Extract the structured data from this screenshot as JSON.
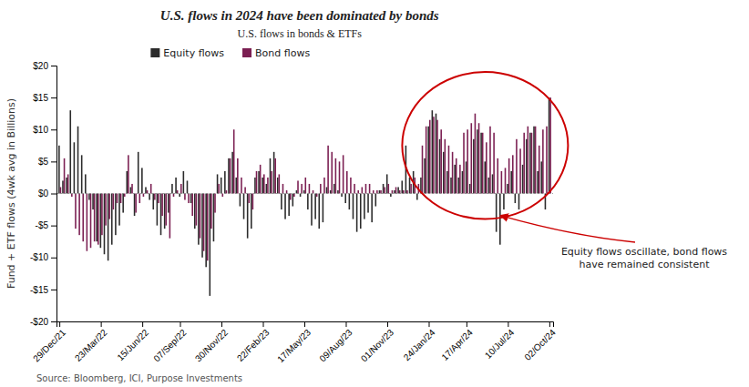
{
  "chart_data": {
    "type": "bar",
    "title": "U.S. flows in 2024 have been dominated by bonds",
    "subtitle": "U.S. flows in bonds & ETFs",
    "ylabel": "Fund + ETF flows (4wk avg in Billions)",
    "source": "Source: Bloomberg, ICI, Purpose Investments",
    "annotation": "Equity flows oscillate, bond flows\nhave remained consistent",
    "categories": [
      "29/Dec/21",
      null,
      null,
      null,
      null,
      null,
      null,
      null,
      null,
      null,
      null,
      "23/Mar/22",
      null,
      null,
      null,
      null,
      null,
      null,
      null,
      null,
      null,
      null,
      "15/Jun/22",
      null,
      null,
      null,
      null,
      null,
      null,
      null,
      null,
      null,
      "07/Sep/22",
      null,
      null,
      null,
      null,
      null,
      null,
      null,
      null,
      null,
      null,
      "30/Nov/22",
      null,
      null,
      null,
      null,
      null,
      null,
      null,
      null,
      null,
      null,
      "22/Feb/23",
      null,
      null,
      null,
      null,
      null,
      null,
      null,
      null,
      null,
      null,
      "17/May/23",
      null,
      null,
      null,
      null,
      null,
      null,
      null,
      null,
      null,
      null,
      "09/Aug/23",
      null,
      null,
      null,
      null,
      null,
      null,
      null,
      null,
      null,
      null,
      "01/Nov/23",
      null,
      null,
      null,
      null,
      null,
      null,
      null,
      null,
      null,
      null,
      "24/Jan/24",
      null,
      null,
      null,
      null,
      null,
      null,
      null,
      null,
      null,
      "17/Apr/24",
      null,
      null,
      null,
      null,
      null,
      null,
      null,
      null,
      null,
      null,
      "10/Jul/24",
      null,
      null,
      null,
      null,
      null,
      null,
      null,
      null,
      null,
      null,
      "02/Oct/24"
    ],
    "series": [
      {
        "name": "Equity flows",
        "color": "#2b2b2b",
        "values": [
          7.5,
          2.0,
          2.5,
          13.0,
          8.0,
          10.5,
          6.0,
          3.0,
          -1.0,
          -2.5,
          -7.5,
          -8.5,
          -9.5,
          -10.5,
          -8.0,
          -6.5,
          -5.0,
          -3.0,
          3.5,
          1.0,
          -3.5,
          6.5,
          4.0,
          1.0,
          -1.0,
          -2.5,
          -5.0,
          -6.5,
          -5.5,
          -3.0,
          1.5,
          2.5,
          -0.5,
          3.5,
          2.0,
          -1.5,
          -5.5,
          -8.0,
          -10.0,
          -11.5,
          -16.0,
          -7.5,
          3.0,
          2.5,
          3.5,
          5.5,
          6.5,
          2.5,
          -2.0,
          -4.0,
          -7.0,
          -5.5,
          2.5,
          3.5,
          2.5,
          1.5,
          5.5,
          6.5,
          2.5,
          -2.5,
          -4.0,
          -3.5,
          -2.0,
          0.5,
          -0.5,
          0.5,
          -2.5,
          -5.0,
          -4.0,
          -5.5,
          -4.5,
          1.0,
          0.5,
          1.5,
          0.5,
          -0.5,
          -1.5,
          -2.5,
          -4.0,
          -6.0,
          -5.5,
          -4.0,
          -3.0,
          -4.5,
          -2.0,
          0.5,
          1.5,
          3.0,
          -0.5,
          0.5,
          1.0,
          2.0,
          7.5,
          2.5,
          3.5,
          -1.0,
          2.5,
          5.5,
          10.5,
          13.0,
          12.5,
          8.5,
          6.5,
          3.5,
          2.5,
          4.5,
          2.5,
          3.5,
          5.0,
          1.5,
          8.5,
          10.0,
          9.5,
          5.0,
          2.5,
          3.0,
          -6.0,
          -8.0,
          -2.5,
          1.5,
          3.5,
          -1.5,
          -2.5,
          4.5,
          8.5,
          9.5,
          10.5,
          3.5,
          5.0,
          -2.5,
          15.0
        ]
      },
      {
        "name": "Bond flows",
        "color": "#7B1F52",
        "values": [
          1.0,
          5.5,
          3.0,
          -0.5,
          -5.5,
          -6.5,
          -7.5,
          -9.0,
          -8.5,
          -7.5,
          -8.0,
          -6.5,
          -5.0,
          -4.0,
          -2.5,
          -1.5,
          -1.5,
          -0.5,
          6.0,
          1.5,
          -3.0,
          -1.5,
          -0.5,
          0.5,
          1.5,
          -1.0,
          -1.5,
          -3.5,
          -5.0,
          -7.0,
          -0.5,
          0.5,
          1.5,
          -1.0,
          -1.5,
          -3.5,
          -5.0,
          -7.0,
          -9.0,
          -10.5,
          -5.5,
          -3.0,
          1.5,
          -0.5,
          0.5,
          5.5,
          10.0,
          5.5,
          2.5,
          1.0,
          -1.5,
          -2.5,
          3.5,
          4.5,
          3.0,
          2.5,
          3.5,
          5.5,
          3.0,
          1.5,
          0.5,
          -1.0,
          -0.5,
          2.0,
          1.5,
          2.5,
          1.5,
          0.5,
          -0.5,
          1.5,
          2.5,
          7.5,
          6.5,
          5.5,
          5.0,
          6.0,
          3.5,
          2.5,
          1.5,
          0.5,
          1.0,
          1.5,
          1.5,
          0.5,
          0.5,
          0.5,
          1.0,
          1.5,
          0.5,
          1.0,
          0.5,
          0.5,
          0.5,
          1.5,
          2.5,
          1.5,
          7.5,
          10.5,
          11.5,
          12.0,
          11.5,
          10.0,
          8.5,
          7.5,
          6.5,
          5.5,
          4.5,
          9.5,
          10.0,
          11.0,
          12.5,
          11.0,
          9.5,
          8.0,
          10.5,
          9.5,
          5.5,
          3.5,
          4.0,
          5.5,
          6.0,
          8.5,
          7.0,
          9.5,
          10.5,
          9.5,
          10.5,
          7.5,
          10.0,
          10.5,
          15.0
        ]
      }
    ],
    "ylim": [
      -20,
      20
    ],
    "yticks": [
      {
        "value": -20,
        "label": "-$20"
      },
      {
        "value": -15,
        "label": "-$15"
      },
      {
        "value": -10,
        "label": "-$10"
      },
      {
        "value": -5,
        "label": "-$5"
      },
      {
        "value": 0,
        "label": "$0"
      },
      {
        "value": 5,
        "label": "$5"
      },
      {
        "value": 10,
        "label": "$10"
      },
      {
        "value": 15,
        "label": "$15"
      },
      {
        "value": 20,
        "label": "$20"
      }
    ],
    "grid": false,
    "legend": "top"
  }
}
